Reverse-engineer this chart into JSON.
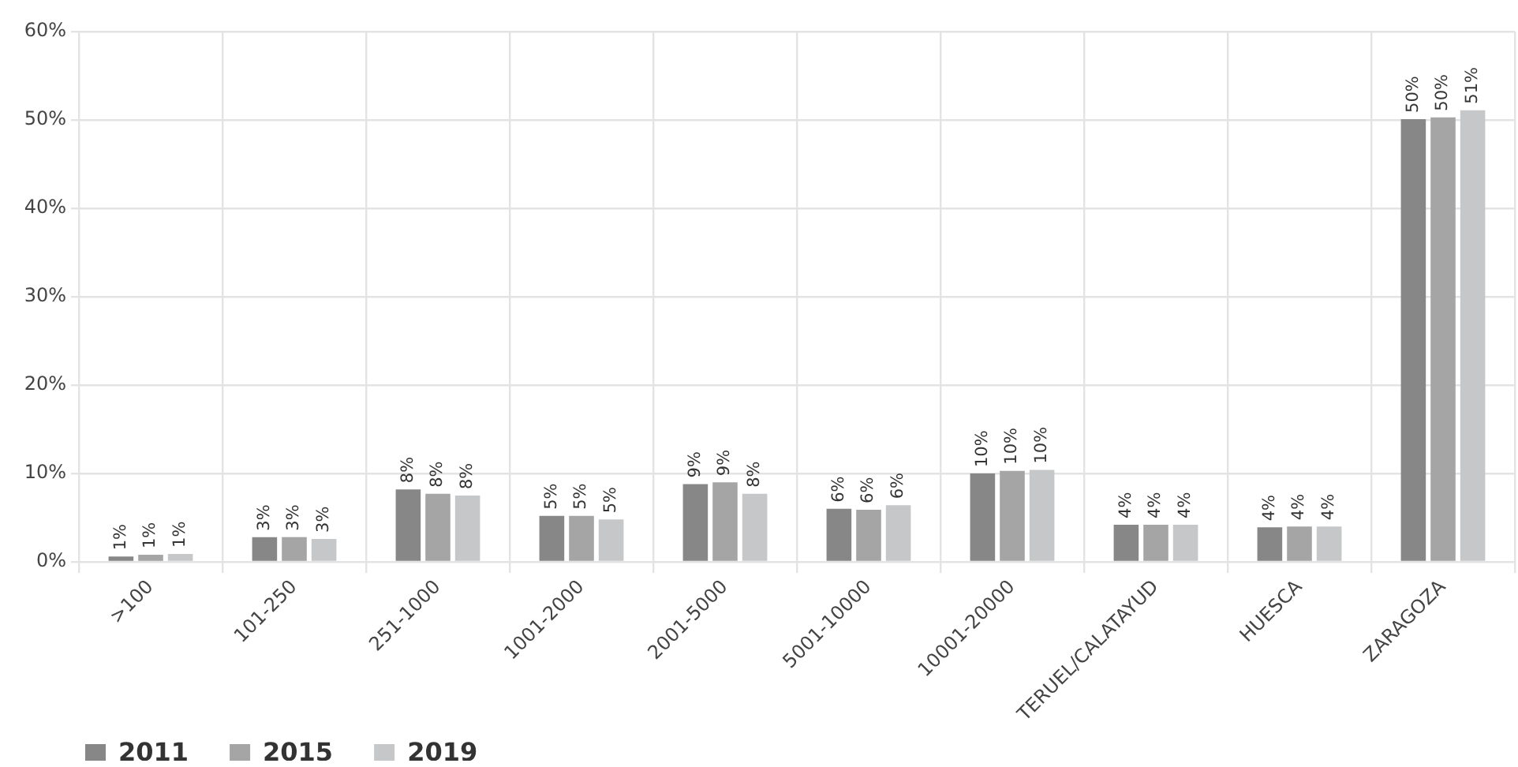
{
  "chart_data": {
    "type": "bar",
    "categories": [
      ">100",
      "101-250",
      "251-1000",
      "1001-2000",
      "2001-5000",
      "5001-10000",
      "10001-20000",
      "TERUEL/CALATAYUD",
      "HUESCA",
      "ZARAGOZA"
    ],
    "series": [
      {
        "name": "2011",
        "color": "#878787",
        "values": [
          0.6,
          2.8,
          8.2,
          5.2,
          8.8,
          6.0,
          10.0,
          4.2,
          3.9,
          50.1
        ],
        "value_labels": [
          "1%",
          "3%",
          "8%",
          "5%",
          "9%",
          "6%",
          "10%",
          "4%",
          "4%",
          "50%"
        ]
      },
      {
        "name": "2015",
        "color": "#a5a5a6",
        "values": [
          0.8,
          2.8,
          7.7,
          5.2,
          9.0,
          5.9,
          10.3,
          4.2,
          4.0,
          50.3
        ],
        "value_labels": [
          "1%",
          "3%",
          "8%",
          "5%",
          "9%",
          "6%",
          "10%",
          "4%",
          "4%",
          "50%"
        ]
      },
      {
        "name": "2019",
        "color": "#c6c7c8",
        "values": [
          0.9,
          2.6,
          7.5,
          4.8,
          7.7,
          6.4,
          10.4,
          4.2,
          4.0,
          51.1
        ],
        "value_labels": [
          "1%",
          "3%",
          "8%",
          "5%",
          "8%",
          "6%",
          "10%",
          "4%",
          "4%",
          "51%"
        ]
      }
    ],
    "ylim": [
      0,
      60
    ],
    "yticks": [
      {
        "value": 0,
        "label": "0%"
      },
      {
        "value": 10,
        "label": "10%"
      },
      {
        "value": 20,
        "label": "20%"
      },
      {
        "value": 30,
        "label": "30%"
      },
      {
        "value": 40,
        "label": "40%"
      },
      {
        "value": 50,
        "label": "50%"
      },
      {
        "value": 60,
        "label": "60%"
      }
    ],
    "grid": true,
    "legend": "bottom left"
  }
}
